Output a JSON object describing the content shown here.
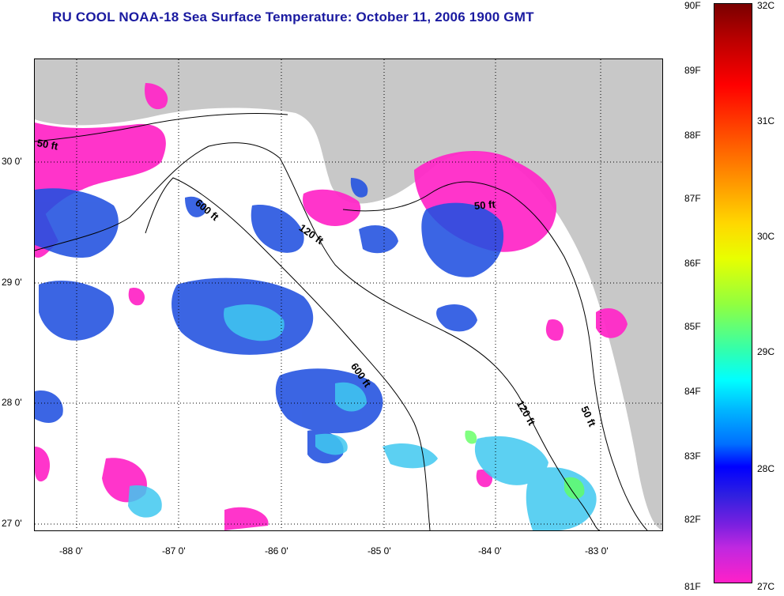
{
  "title": "RU COOL  NOAA-18  Sea Surface Temperature:  October 11, 2006 1900 GMT",
  "map": {
    "latitude_labels": [
      "30 0'",
      "29 0'",
      "28 0'",
      "27 0'"
    ],
    "longitude_labels": [
      "-88 0'",
      "-87 0'",
      "-86 0'",
      "-85 0'",
      "-84 0'",
      "-83 0'"
    ],
    "contour_labels": {
      "c50_west": "50 ft",
      "c600_north": "600 ft",
      "c120_north": "120 ft",
      "c50_east": "50 ft",
      "c600_south": "600 ft",
      "c120_south": "120 ft",
      "c50_south": "50 ft"
    },
    "colors": {
      "land": "#c8c8c8",
      "cloud": "#ffffff",
      "warm_27c": "#ff2ac8",
      "sst_28c": "#2050e0",
      "sst_29c": "#40c8f0",
      "sst_30c": "#60ff60"
    }
  },
  "colorbar": {
    "fahrenheit_labels": [
      "90F",
      "89F",
      "88F",
      "87F",
      "86F",
      "85F",
      "84F",
      "83F",
      "82F",
      "81F"
    ],
    "celsius_labels": [
      "32C",
      "31C",
      "30C",
      "29C",
      "28C",
      "27C"
    ]
  }
}
